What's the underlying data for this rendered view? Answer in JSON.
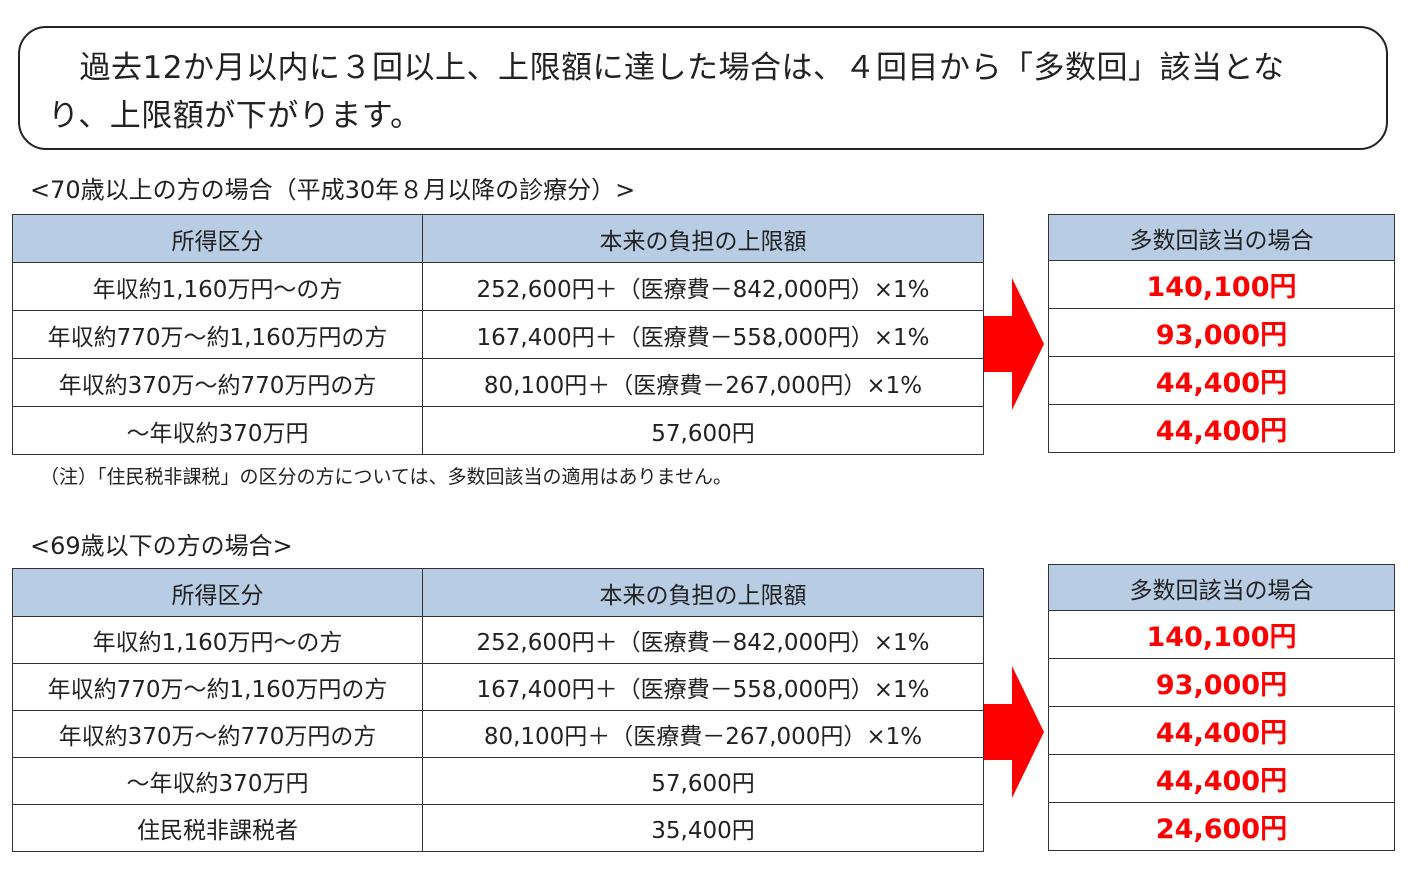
{
  "notice": {
    "line1": "　過去12か月以内に３回以上、上限額に達した場合は、４回目から「多数回」該当とな",
    "line2": "り、上限額が下がります。"
  },
  "section70": {
    "caption": "<70歳以上の方の場合（平成30年８月以降の診療分）>",
    "headers": [
      "所得区分",
      "本来の負担の上限額"
    ],
    "rows": [
      [
        "年収約1,160万円～の方",
        "252,600円＋（医療費－842,000円）×1%"
      ],
      [
        "年収約770万～約1,160万円の方",
        "167,400円＋（医療費－558,000円）×1%"
      ],
      [
        "年収約370万～約770万円の方",
        "80,100円＋（医療費－267,000円）×1%"
      ],
      [
        "～年収約370万円",
        "57,600円"
      ]
    ],
    "multi_header": "多数回該当の場合",
    "multi_values": [
      "140,100円",
      "93,000円",
      "44,400円",
      "44,400円"
    ],
    "note": "（注）「住民税非課税」の区分の方については、多数回該当の適用はありません。"
  },
  "section69": {
    "caption": "<69歳以下の方の場合>",
    "headers": [
      "所得区分",
      "本来の負担の上限額"
    ],
    "rows": [
      [
        "年収約1,160万円～の方",
        "252,600円＋（医療費－842,000円）×1%"
      ],
      [
        "年収約770万～約1,160万円の方",
        "167,400円＋（医療費－558,000円）×1%"
      ],
      [
        "年収約370万～約770万円の方",
        "80,100円＋（医療費－267,000円）×1%"
      ],
      [
        "～年収約370万円",
        "57,600円"
      ],
      [
        "住民税非課税者",
        "35,400円"
      ]
    ],
    "multi_header": "多数回該当の場合",
    "multi_values": [
      "140,100円",
      "93,000円",
      "44,400円",
      "44,400円",
      "24,600円"
    ]
  },
  "colors": {
    "header_bg": "#b8cce4",
    "highlight": "#ff0000",
    "arrow": "#ff0000"
  }
}
